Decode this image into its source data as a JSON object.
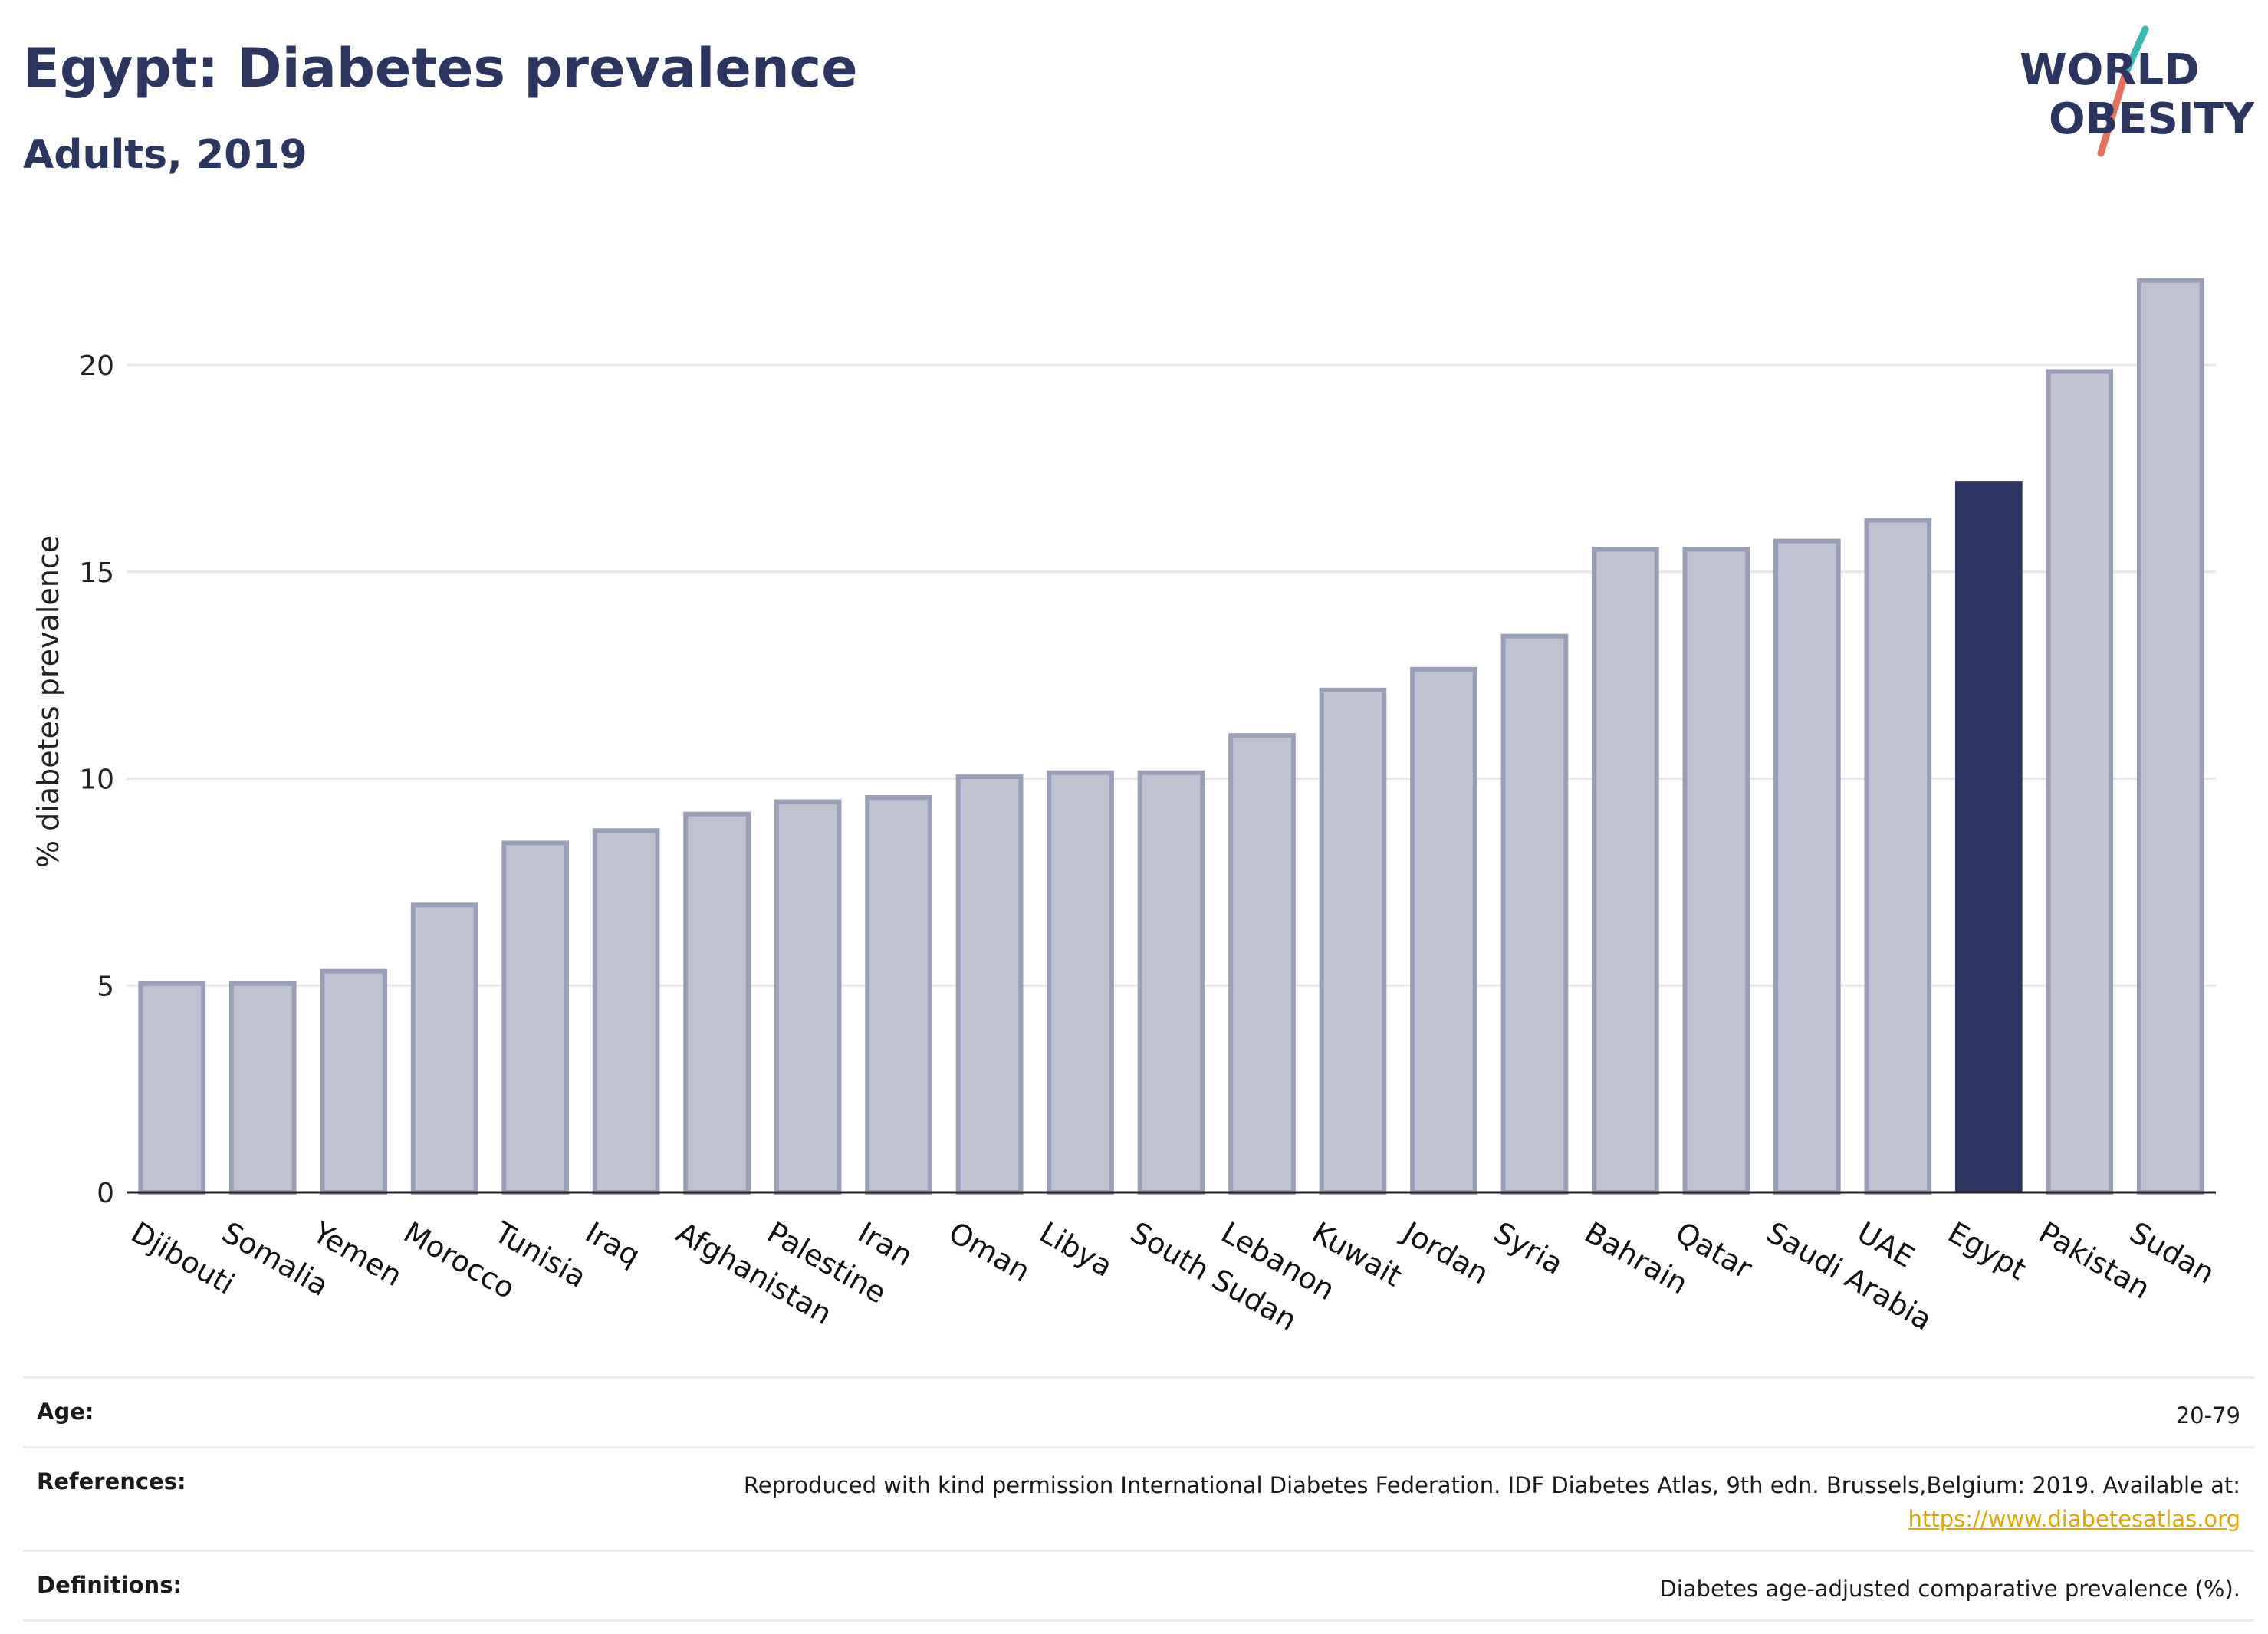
{
  "header": {
    "title": "Egypt: Diabetes prevalence",
    "subtitle": "Adults, 2019"
  },
  "logo": {
    "line1": "WORLD",
    "line2": "OBESITY",
    "colors": {
      "text": "#2b3560",
      "stroke_teal": "#3bb8b3",
      "stroke_coral": "#e8705f"
    }
  },
  "chart_data": {
    "type": "bar",
    "title": "Egypt: Diabetes prevalence",
    "subtitle": "Adults, 2019",
    "xlabel": "",
    "ylabel": "% diabetes prevalence",
    "ylim": [
      0,
      22.8
    ],
    "yticks": [
      0,
      5,
      10,
      15,
      20
    ],
    "grid": true,
    "categories": [
      "Djibouti",
      "Somalia",
      "Yemen",
      "Morocco",
      "Tunisia",
      "Iraq",
      "Afghanistan",
      "Palestine",
      "Iran",
      "Oman",
      "Libya",
      "South Sudan",
      "Lebanon",
      "Kuwait",
      "Jordan",
      "Syria",
      "Bahrain",
      "Qatar",
      "Saudi Arabia",
      "UAE",
      "Egypt",
      "Pakistan",
      "Sudan"
    ],
    "values": [
      5.1,
      5.1,
      5.4,
      7.0,
      8.5,
      8.8,
      9.2,
      9.5,
      9.6,
      10.1,
      10.2,
      10.2,
      11.1,
      12.2,
      12.7,
      13.5,
      15.6,
      15.6,
      15.8,
      16.3,
      17.2,
      19.9,
      22.1
    ],
    "highlight": "Egypt",
    "colors": {
      "bar": "#bfc2d0",
      "bar_outline": "#9a9fb8",
      "highlight": "#2b3560",
      "grid": "#e8e8ee",
      "axis": "#222222"
    }
  },
  "info": {
    "age": {
      "label": "Age:",
      "value": "20-79"
    },
    "references": {
      "label": "References:",
      "value": "Reproduced with kind permission International Diabetes Federation. IDF Diabetes Atlas, 9th edn. Brussels,Belgium: 2019. Available at:",
      "link": "https://www.diabetesatlas.org"
    },
    "definitions": {
      "label": "Definitions:",
      "value": "Diabetes age-adjusted comparative prevalence (%)."
    }
  }
}
